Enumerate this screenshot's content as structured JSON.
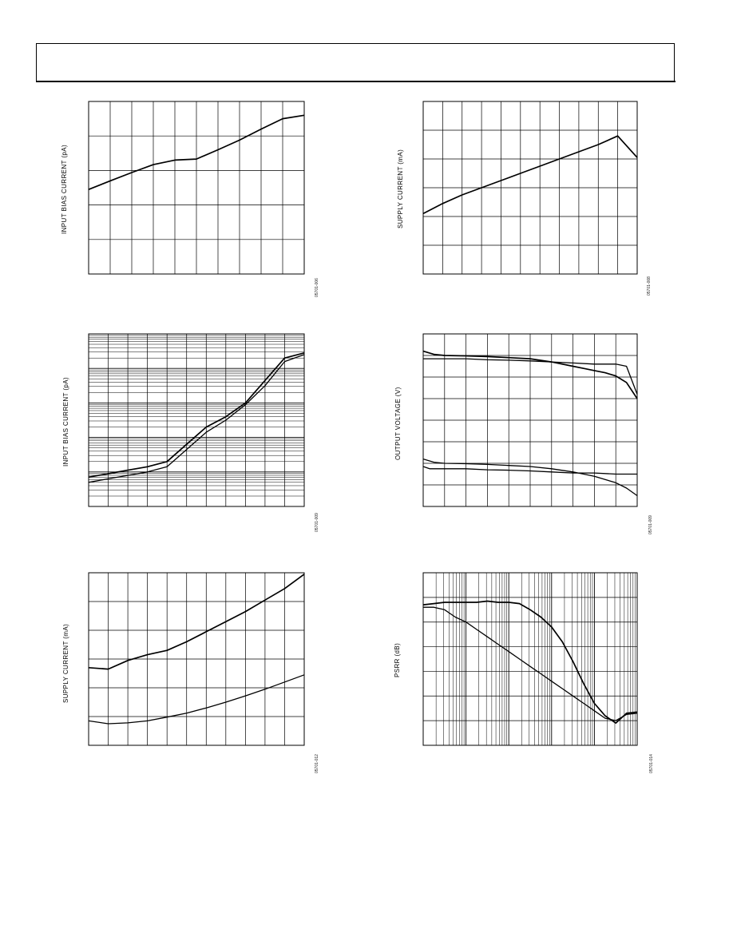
{
  "header": {
    "title": ""
  },
  "chart_data": [
    {
      "id": "p1",
      "type": "line",
      "ylabel": "INPUT BIAS CURRENT (pA)",
      "figure_code": "05701-006",
      "xlim": [
        0,
        10
      ],
      "ylim": [
        0,
        5
      ],
      "ylog": false,
      "vgrid": 10,
      "hgrid": 5,
      "series": [
        {
          "name": "",
          "x": [
            0,
            1,
            2,
            3,
            4,
            5,
            6,
            7,
            8,
            9,
            10
          ],
          "y": [
            2.45,
            2.7,
            2.94,
            3.17,
            3.3,
            3.33,
            3.6,
            3.88,
            4.2,
            4.5,
            4.6
          ]
        }
      ]
    },
    {
      "id": "p2",
      "type": "line",
      "ylabel": "SUPPLY CURRENT (mA)",
      "figure_code": "05701-008",
      "xlim": [
        0,
        11
      ],
      "ylim": [
        0,
        6
      ],
      "ylog": false,
      "vgrid": 11,
      "hgrid": 6,
      "series": [
        {
          "name": "",
          "x": [
            0,
            1,
            2,
            3,
            4,
            5,
            6,
            7,
            8,
            9,
            10,
            11
          ],
          "y": [
            2.1,
            2.45,
            2.75,
            3.0,
            3.25,
            3.5,
            3.75,
            4.0,
            4.25,
            4.5,
            4.8,
            4.05
          ]
        }
      ]
    },
    {
      "id": "p3",
      "type": "line",
      "ylabel": "INPUT BIAS CURRENT (pA)",
      "figure_code": "05701-009",
      "xlim": [
        0,
        11
      ],
      "ylim": [
        0,
        10
      ],
      "ylog": false,
      "vgrid": 11,
      "hgrid": 10,
      "series": [
        {
          "name": "",
          "x": [
            0,
            1,
            2,
            3,
            4,
            5,
            6,
            7,
            8,
            9,
            10,
            11
          ],
          "y": [
            1.7,
            1.9,
            2.1,
            2.3,
            2.6,
            3.6,
            4.6,
            5.2,
            6.0,
            7.3,
            8.6,
            8.9
          ]
        },
        {
          "name": "",
          "x": [
            0,
            1,
            2,
            3,
            4,
            5,
            6,
            7,
            8,
            9,
            10,
            11
          ],
          "y": [
            1.4,
            1.6,
            1.8,
            2.0,
            2.3,
            3.3,
            4.3,
            5.0,
            5.9,
            7.0,
            8.4,
            8.8
          ]
        }
      ]
    },
    {
      "id": "p4",
      "type": "line",
      "ylabel": "OUTPUT VOLTAGE (V)",
      "figure_code": "05701-009",
      "xlim": [
        0,
        10
      ],
      "ylim": [
        0,
        8
      ],
      "ylog": false,
      "vgrid": 10,
      "hgrid": 8,
      "series": [
        {
          "name": "",
          "x": [
            0,
            0.5,
            1,
            2,
            3,
            4,
            5,
            6,
            7,
            7.5,
            8,
            8.5,
            9,
            9.5,
            10
          ],
          "y": [
            7.2,
            7.05,
            7.0,
            6.98,
            6.95,
            6.9,
            6.85,
            6.7,
            6.5,
            6.4,
            6.3,
            6.2,
            6.05,
            5.75,
            5.0
          ]
        },
        {
          "name": "",
          "x": [
            0,
            0.5,
            1,
            2,
            3,
            4,
            5,
            6,
            7,
            8,
            9,
            9.5,
            10
          ],
          "y": [
            6.85,
            6.85,
            6.85,
            6.85,
            6.8,
            6.78,
            6.75,
            6.7,
            6.65,
            6.6,
            6.6,
            6.5,
            5.2
          ]
        },
        {
          "name": "",
          "x": [
            0,
            0.5,
            1,
            2,
            3,
            4,
            5,
            6,
            7,
            8,
            9,
            9.5,
            10
          ],
          "y": [
            2.2,
            2.05,
            2.0,
            1.98,
            1.95,
            1.9,
            1.85,
            1.75,
            1.6,
            1.4,
            1.1,
            0.85,
            0.5
          ]
        },
        {
          "name": "",
          "x": [
            0,
            0.3,
            1,
            2,
            3,
            4,
            5,
            6,
            7,
            8,
            9,
            10
          ],
          "y": [
            1.85,
            1.75,
            1.75,
            1.75,
            1.7,
            1.68,
            1.65,
            1.6,
            1.55,
            1.55,
            1.5,
            1.5
          ]
        }
      ]
    },
    {
      "id": "p5",
      "type": "line",
      "ylabel": "SUPPLY CURRENT (mA)",
      "figure_code": "05701-012",
      "xlim": [
        0,
        11
      ],
      "ylim": [
        0,
        6
      ],
      "ylog": false,
      "vgrid": 11,
      "hgrid": 6,
      "series": [
        {
          "name": "",
          "x": [
            0,
            1,
            2,
            3,
            4,
            5,
            6,
            7,
            8,
            9,
            10,
            11
          ],
          "y": [
            2.7,
            2.65,
            2.95,
            3.15,
            3.3,
            3.6,
            3.95,
            4.3,
            4.65,
            5.05,
            5.45,
            5.95
          ]
        },
        {
          "name": "",
          "x": [
            0,
            1,
            2,
            3,
            4,
            5,
            6,
            7,
            8,
            9,
            10,
            11
          ],
          "y": [
            0.85,
            0.75,
            0.78,
            0.85,
            0.98,
            1.12,
            1.3,
            1.5,
            1.72,
            1.95,
            2.2,
            2.45
          ]
        }
      ]
    },
    {
      "id": "p6",
      "type": "line",
      "ylabel": "PSRR (dB)",
      "figure_code": "05701-014",
      "xlim": [
        0,
        10
      ],
      "ylim": [
        0,
        7
      ],
      "ylog": false,
      "xlog_decades": 5,
      "vgrid": 0,
      "hgrid": 7,
      "series": [
        {
          "name": "",
          "x": [
            0,
            0.5,
            1,
            1.5,
            2,
            2.5,
            3,
            3.5,
            4,
            4.5,
            5,
            5.5,
            6,
            6.5,
            7,
            7.5,
            8,
            8.5,
            9,
            9.5,
            10
          ],
          "y": [
            5.7,
            5.75,
            5.8,
            5.8,
            5.8,
            5.8,
            5.85,
            5.8,
            5.8,
            5.75,
            5.5,
            5.2,
            4.8,
            4.2,
            3.4,
            2.5,
            1.7,
            1.2,
            0.9,
            1.3,
            1.35
          ]
        },
        {
          "name": "",
          "x": [
            0,
            0.5,
            1,
            1.5,
            2,
            2.5,
            3,
            3.5,
            4,
            4.5,
            5,
            5.5,
            6,
            6.5,
            7,
            7.5,
            8,
            8.5,
            9,
            9.5,
            10
          ],
          "y": [
            5.6,
            5.6,
            5.5,
            5.2,
            5.0,
            4.7,
            4.4,
            4.1,
            3.8,
            3.5,
            3.2,
            2.9,
            2.6,
            2.3,
            2.0,
            1.7,
            1.4,
            1.1,
            1.0,
            1.25,
            1.3
          ]
        }
      ]
    }
  ]
}
